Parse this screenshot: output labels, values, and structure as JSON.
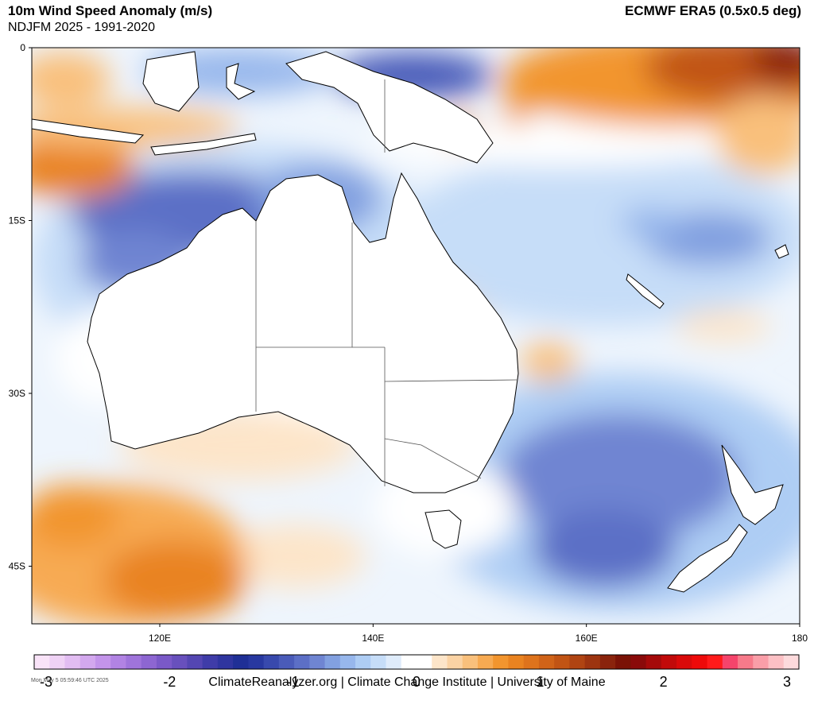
{
  "header": {
    "title": "10m Wind Speed Anomaly (m/s)",
    "subtitle": "NDJFM 2025 - 1991-2020",
    "source": "ECMWF ERA5 (0.5x0.5 deg)"
  },
  "map": {
    "region": "Australia",
    "lon_range": [
      108,
      180
    ],
    "lat_range": [
      -50,
      0
    ],
    "y_ticks": [
      {
        "lat": 0,
        "label": "0"
      },
      {
        "lat": -15,
        "label": "15S"
      },
      {
        "lat": -30,
        "label": "30S"
      },
      {
        "lat": -45,
        "label": "45S"
      }
    ],
    "x_ticks": [
      {
        "lon": 120,
        "label": "120E"
      },
      {
        "lon": 140,
        "label": "140E"
      },
      {
        "lon": 160,
        "label": "160E"
      },
      {
        "lon": 180,
        "label": "180"
      }
    ]
  },
  "colorbar": {
    "min": -3,
    "max": 3,
    "tick_labels": [
      "-3",
      "-2",
      "-1",
      "0",
      "1",
      "2",
      "3"
    ],
    "tick_values": [
      -3,
      -2,
      -1,
      0,
      1,
      2,
      3
    ],
    "colors": [
      "#f9e3f8",
      "#efd2f5",
      "#e2bdf2",
      "#d3a8ee",
      "#c394ea",
      "#b183e3",
      "#9f74db",
      "#8d66d2",
      "#7a59c8",
      "#6850bd",
      "#5446b2",
      "#3f3ca8",
      "#2f359f",
      "#1f2f96",
      "#2838a0",
      "#3849ad",
      "#4a5bb9",
      "#5c6fc6",
      "#6f85d2",
      "#82a0e0",
      "#97b7ec",
      "#aecdf4",
      "#c6ddf8",
      "#dfecfb",
      "#ffffff",
      "#ffffff",
      "#fde5c9",
      "#fbd3a4",
      "#f9c07c",
      "#f7aa52",
      "#f2952e",
      "#e98320",
      "#de731c",
      "#d06318",
      "#c15414",
      "#b04412",
      "#9d3410",
      "#8a230c",
      "#7a1206",
      "#8a0a0a",
      "#a50a0a",
      "#c10a0a",
      "#d90a0a",
      "#ee0a0a",
      "#ff1a1a",
      "#f5446b",
      "#f77a8a",
      "#fa9ea8",
      "#fcc0c4",
      "#fddadc"
    ]
  },
  "footer": {
    "timestamp": "Mon May  5 05:59:46 UTC 2025",
    "credit": "ClimateReanalyzer.org | Climate Change Institute | University of Maine"
  }
}
